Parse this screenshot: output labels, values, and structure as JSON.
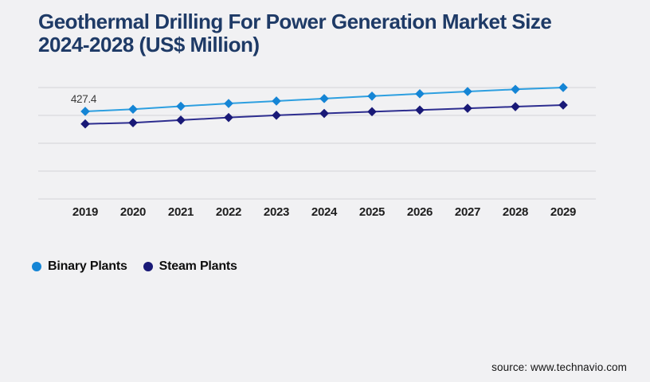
{
  "page": {
    "background_color": "#f1f1f3",
    "title_line1": "Geothermal Drilling For Power Generation Market Size",
    "title_line2": "2024-2028 (US$ Million)",
    "title_color": "#1e3a66",
    "source": "source: www.technavio.com"
  },
  "chart_data": {
    "type": "line",
    "title": "Geothermal Drilling For Power Generation Market Size 2024-2028 (US$ Million)",
    "categories": [
      "2019",
      "2020",
      "2021",
      "2022",
      "2023",
      "2024",
      "2025",
      "2026",
      "2027",
      "2028",
      "2029"
    ],
    "series": [
      {
        "name": "Binary Plants",
        "line_color": "#2d9fe0",
        "marker_color": "#1585d5",
        "values": [
          427.4,
          438.0,
          452.5,
          466.0,
          478.0,
          490.0,
          502.0,
          513.5,
          524.5,
          535.0,
          544.0
        ]
      },
      {
        "name": "Steam Plants",
        "line_color": "#2d2d8f",
        "marker_color": "#191977",
        "values": [
          366.4,
          372.0,
          385.0,
          397.5,
          408.5,
          417.5,
          426.0,
          434.0,
          442.5,
          450.5,
          458.4
        ]
      }
    ],
    "data_labels": [
      {
        "series": "Binary Plants",
        "category": "2019",
        "text": "427.4"
      }
    ],
    "xlabel": "",
    "ylabel": "",
    "ylim": [
      0,
      600
    ],
    "y_axis_labels_visible": false,
    "grid": "horizontal",
    "gridline_color": "#d2d2d7",
    "x_label_color": "#1d1d1d",
    "data_label_color": "#3a3a3a",
    "marker_shape": "diamond",
    "legend_position": "below-left"
  }
}
